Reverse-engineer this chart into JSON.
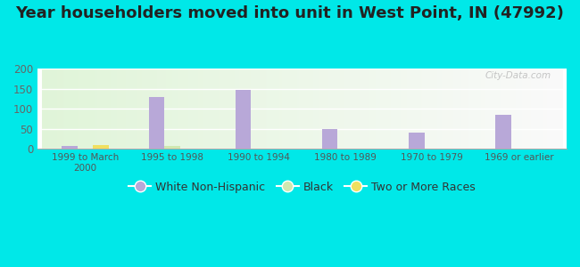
{
  "title": "Year householders moved into unit in West Point, IN (47992)",
  "categories": [
    "1999 to March\n2000",
    "1995 to 1998",
    "1990 to 1994",
    "1980 to 1989",
    "1970 to 1979",
    "1969 or earlier"
  ],
  "white_non_hispanic": [
    7,
    130,
    147,
    48,
    40,
    85
  ],
  "black": [
    0,
    7,
    0,
    0,
    0,
    0
  ],
  "two_or_more_races": [
    8,
    0,
    0,
    0,
    0,
    0
  ],
  "white_color": "#b8a8d8",
  "black_color": "#d0e8b0",
  "two_or_more_color": "#f0e060",
  "ylim": [
    0,
    200
  ],
  "yticks": [
    0,
    50,
    100,
    150,
    200
  ],
  "outer_bg": "#00e8e8",
  "title_fontsize": 13,
  "watermark": "City-Data.com"
}
